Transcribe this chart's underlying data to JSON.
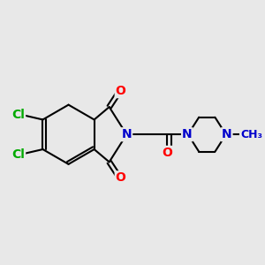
{
  "bg_color": "#e8e8e8",
  "bond_color": "#000000",
  "bond_width": 1.5,
  "atom_colors": {
    "C": "#000000",
    "N": "#0000cc",
    "O": "#ff0000",
    "Cl": "#00aa00"
  },
  "font_size_atom": 10,
  "font_size_me": 9
}
